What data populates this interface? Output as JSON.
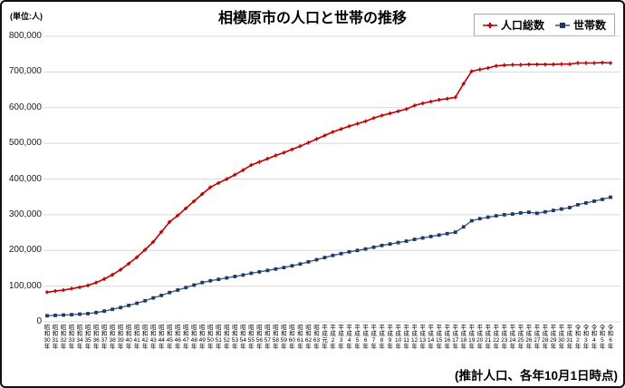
{
  "chart": {
    "title": "相模原市の人口と世帯の推移",
    "unit_label": "(単位:人)",
    "note": "(推計人口、各年10月1日時点)",
    "legend": [
      {
        "label": "人口総数",
        "color": "#c00000",
        "marker": "plus"
      },
      {
        "label": "世帯数",
        "color": "#1f3864",
        "marker": "square"
      }
    ]
  },
  "chart_data": {
    "type": "line",
    "title": "相模原市の人口と世帯の推移",
    "ylabel": "(単位:人)",
    "ylim": [
      0,
      800000
    ],
    "yticks": [
      0,
      100000,
      200000,
      300000,
      400000,
      500000,
      600000,
      700000,
      800000
    ],
    "grid": true,
    "legend_position": "top-right",
    "categories": [
      "昭和30年",
      "昭和31年",
      "昭和32年",
      "昭和33年",
      "昭和34年",
      "昭和35年",
      "昭和36年",
      "昭和37年",
      "昭和38年",
      "昭和39年",
      "昭和40年",
      "昭和41年",
      "昭和42年",
      "昭和43年",
      "昭和44年",
      "昭和45年",
      "昭和46年",
      "昭和47年",
      "昭和48年",
      "昭和49年",
      "昭和50年",
      "昭和51年",
      "昭和52年",
      "昭和53年",
      "昭和54年",
      "昭和55年",
      "昭和56年",
      "昭和57年",
      "昭和58年",
      "昭和59年",
      "昭和60年",
      "昭和61年",
      "昭和62年",
      "昭和63年",
      "平成元年",
      "平成2年",
      "平成3年",
      "平成4年",
      "平成5年",
      "平成6年",
      "平成7年",
      "平成8年",
      "平成9年",
      "平成10年",
      "平成11年",
      "平成12年",
      "平成13年",
      "平成14年",
      "平成15年",
      "平成16年",
      "平成17年",
      "平成18年",
      "平成19年",
      "平成20年",
      "平成21年",
      "平成22年",
      "平成23年",
      "平成24年",
      "平成25年",
      "平成26年",
      "平成27年",
      "平成28年",
      "平成29年",
      "平成30年",
      "平成31年",
      "令和2年",
      "令和3年",
      "令和4年",
      "令和5年",
      "令和6年"
    ],
    "series": [
      {
        "name": "人口総数",
        "marker": "plus",
        "line_color": "#c00000",
        "marker_color": "#c00000",
        "values": [
          83000,
          86000,
          89000,
          93000,
          97000,
          102000,
          110000,
          120000,
          132000,
          146000,
          163000,
          181000,
          202000,
          224000,
          252000,
          280000,
          298000,
          318000,
          338000,
          358000,
          377000,
          389000,
          400000,
          412000,
          425000,
          439000,
          448000,
          457000,
          466000,
          474000,
          483000,
          492000,
          502000,
          512000,
          522000,
          532000,
          540000,
          548000,
          555000,
          562000,
          571000,
          578000,
          584000,
          590000,
          596000,
          606000,
          612000,
          617000,
          622000,
          625000,
          629000,
          667000,
          702000,
          707000,
          711000,
          717000,
          719000,
          720000,
          720000,
          721000,
          721000,
          721000,
          721000,
          722000,
          722000,
          725000,
          725000,
          725000,
          726000,
          725000
        ]
      },
      {
        "name": "世帯数",
        "marker": "square",
        "line_color": "#2a5783",
        "marker_color": "#1f3864",
        "values": [
          17000,
          18000,
          19000,
          20000,
          21500,
          23000,
          26000,
          30000,
          35000,
          40000,
          46000,
          52000,
          59000,
          67000,
          74000,
          82000,
          89000,
          96000,
          103000,
          110000,
          115000,
          119000,
          123000,
          127000,
          131000,
          136000,
          140000,
          144000,
          148000,
          152000,
          157000,
          162000,
          168000,
          174000,
          180000,
          186000,
          191000,
          196000,
          200000,
          204000,
          209000,
          214000,
          218000,
          222000,
          226000,
          231000,
          235000,
          239000,
          243000,
          247000,
          251000,
          266000,
          283000,
          289000,
          293000,
          297000,
          300000,
          302000,
          305000,
          307000,
          304000,
          308000,
          312000,
          316000,
          320000,
          328000,
          333000,
          338000,
          343000,
          349000
        ]
      }
    ]
  }
}
